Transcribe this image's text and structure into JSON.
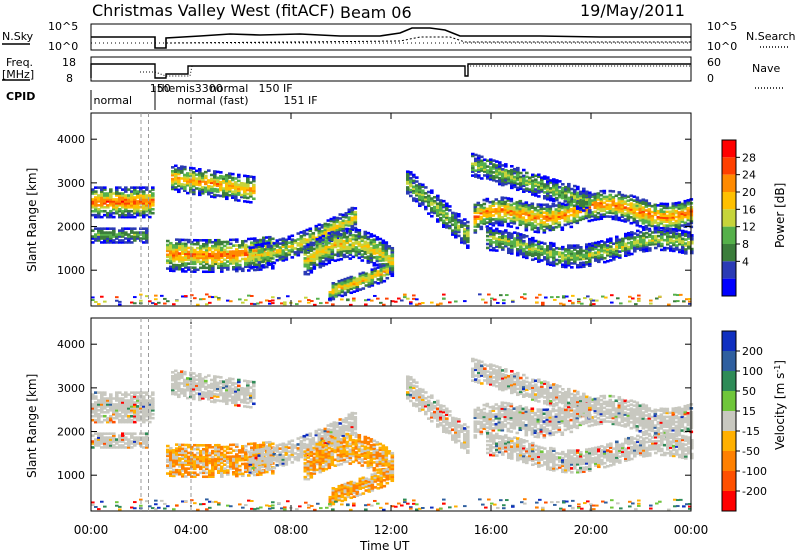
{
  "header": {
    "title": "Christmas Valley West (fitACF)",
    "beam": "Beam 06",
    "date": "19/May/2011"
  },
  "noise_panel": {
    "left_label": "N.Sky",
    "right_label": "N.Search",
    "left_ticks": [
      "10^5",
      "10^0"
    ],
    "right_ticks": [
      "10^5",
      "10^0"
    ]
  },
  "freq_panel": {
    "left_label_1": "Freq.",
    "left_label_2": "[MHz]",
    "right_label": "Nave",
    "left_ticks": [
      "18",
      "8"
    ],
    "right_ticks": [
      "60",
      "0"
    ]
  },
  "cpid": {
    "label": "CPID",
    "entries": [
      {
        "text": "normal",
        "x": 0.1
      },
      {
        "text": "150",
        "x": 2.35
      },
      {
        "text": "themis",
        "x": 2.65
      },
      {
        "text": "normal (fast)",
        "x": 3.45
      },
      {
        "text": "3300",
        "x": 4.15
      },
      {
        "text": "normal",
        "x": 4.75
      },
      {
        "text": "150 IF",
        "x": 6.7
      },
      {
        "text": "151 IF",
        "x": 7.7
      }
    ]
  },
  "chart_data": [
    {
      "type": "heatmap",
      "name": "power",
      "ylabel": "Slant Range [km]",
      "yticks": [
        1000,
        2000,
        3000,
        4000
      ],
      "ylim": [
        180,
        4600
      ],
      "colorbar_label": "Power [dB]",
      "colorbar_ticks": [
        4,
        8,
        12,
        16,
        20,
        24,
        28
      ],
      "colorbar_range": [
        0,
        32
      ]
    },
    {
      "type": "heatmap",
      "name": "velocity",
      "ylabel": "Slant Range [km]",
      "yticks": [
        1000,
        2000,
        3000,
        4000
      ],
      "ylim": [
        180,
        4600
      ],
      "colorbar_label": "Velocity [m s^-1]",
      "colorbar_ticks": [
        200,
        100,
        50,
        15,
        -15,
        -50,
        -100,
        -200
      ],
      "xlabel": "Time UT",
      "xticks": [
        "00:00",
        "04:00",
        "08:00",
        "12:00",
        "16:00",
        "20:00",
        "00:00"
      ],
      "xlim": [
        0,
        24
      ]
    }
  ],
  "colors": {
    "power_scale": [
      "#0000ff",
      "#2a3ab5",
      "#3b7d3b",
      "#55b04a",
      "#c6d43a",
      "#ffc000",
      "#ff8a00",
      "#ff4000",
      "#ff0000"
    ],
    "velocity_scale": [
      "#1030c0",
      "#2f5f9f",
      "#2e8b57",
      "#6fc63a",
      "#c8c8c0",
      "#ffb000",
      "#ff8000",
      "#ff5000",
      "#ff0000"
    ]
  }
}
